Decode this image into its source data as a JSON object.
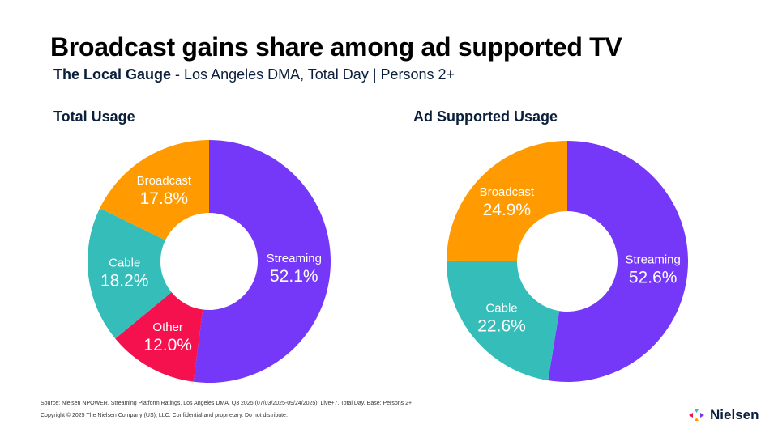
{
  "title": "Broadcast gains share among ad supported TV",
  "subtitle": {
    "bold": "The Local Gauge",
    "rest": " - Los Angeles DMA, Total Day | Persons 2+"
  },
  "chart_data": [
    {
      "type": "pie",
      "title": "Total Usage",
      "slices": [
        {
          "label": "Streaming",
          "value": 52.1,
          "display": "52.1%",
          "color": "#7638F8"
        },
        {
          "label": "Other",
          "value": 12.0,
          "display": "12.0%",
          "color": "#F5104E"
        },
        {
          "label": "Cable",
          "value": 18.2,
          "display": "18.2%",
          "color": "#35BDBA"
        },
        {
          "label": "Broadcast",
          "value": 17.8,
          "display": "17.8%",
          "color": "#FF9B00"
        }
      ]
    },
    {
      "type": "pie",
      "title": "Ad Supported Usage",
      "slices": [
        {
          "label": "Streaming",
          "value": 52.6,
          "display": "52.6%",
          "color": "#7638F8"
        },
        {
          "label": "Cable",
          "value": 22.6,
          "display": "22.6%",
          "color": "#35BDBA"
        },
        {
          "label": "Broadcast",
          "value": 24.9,
          "display": "24.9%",
          "color": "#FF9B00"
        }
      ]
    }
  ],
  "footer": {
    "source": "Source: Nielsen NPOWER, Streaming Platform Ratings, Los Angeles DMA, Q3 2025 (07/03/2025-09/24/2025), Live+7, Total Day, Base: Persons 2+",
    "copyright": "Copyright © 2025 The Nielsen Company (US), LLC. Confidential and proprietary. Do not distribute.",
    "logo": "Nielsen"
  }
}
